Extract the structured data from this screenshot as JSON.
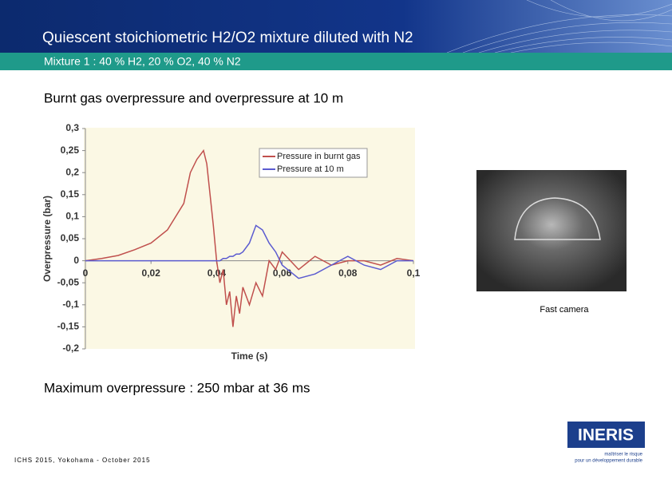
{
  "header": {
    "title": "Quiescent stoichiometric H2/O2 mixture diluted with N2",
    "subtitle": "Mixture 1 : 40 % H2, 20 % O2, 40 % N2"
  },
  "section_title": "Burnt gas overpressure and overpressure at 10 m",
  "chart_data": {
    "type": "line",
    "x_label": "Time (s)",
    "y_label": "Overpressure (bar)",
    "x": [
      0,
      0.005,
      0.01,
      0.015,
      0.02,
      0.025,
      0.03,
      0.032,
      0.034,
      0.036,
      0.037,
      0.038,
      0.039,
      0.04,
      0.041,
      0.042,
      0.043,
      0.044,
      0.045,
      0.046,
      0.047,
      0.048,
      0.05,
      0.052,
      0.054,
      0.056,
      0.058,
      0.06,
      0.065,
      0.07,
      0.075,
      0.08,
      0.085,
      0.09,
      0.095,
      0.1
    ],
    "series": [
      {
        "name": "Pressure in burnt gas",
        "color": "#c0504d",
        "values": [
          0,
          0.005,
          0.012,
          0.025,
          0.04,
          0.07,
          0.13,
          0.2,
          0.23,
          0.25,
          0.22,
          0.15,
          0.08,
          0,
          -0.05,
          -0.02,
          -0.1,
          -0.07,
          -0.15,
          -0.08,
          -0.12,
          -0.06,
          -0.1,
          -0.05,
          -0.08,
          0,
          -0.02,
          0.02,
          -0.02,
          0.01,
          -0.01,
          0,
          0,
          -0.01,
          0.005,
          0
        ]
      },
      {
        "name": "Pressure at 10 m",
        "color": "#5b5bd0",
        "values": [
          0,
          0,
          0,
          0,
          0,
          0,
          0,
          0,
          0,
          0,
          0,
          0,
          0,
          0,
          0,
          0.005,
          0.005,
          0.01,
          0.01,
          0.015,
          0.015,
          0.02,
          0.04,
          0.08,
          0.07,
          0.04,
          0.02,
          -0.01,
          -0.04,
          -0.03,
          -0.01,
          0.01,
          -0.01,
          -0.02,
          0,
          0
        ]
      }
    ],
    "xlim": [
      0,
      0.1
    ],
    "xticks": [
      0,
      {
        "value": 0.02,
        "label": "0,02"
      },
      {
        "value": 0.04,
        "label": "0,04"
      },
      {
        "value": 0.06,
        "label": "0,06"
      },
      {
        "value": 0.08,
        "label": "0,08"
      },
      {
        "value": 0.1,
        "label": "0,1"
      }
    ],
    "ylim": [
      -0.2,
      0.3
    ],
    "yticks": [
      {
        "value": 0.3,
        "label": "0,3"
      },
      {
        "value": 0.25,
        "label": "0,25"
      },
      {
        "value": 0.2,
        "label": "0,2"
      },
      {
        "value": 0.15,
        "label": "0,15"
      },
      {
        "value": 0.1,
        "label": "0,1"
      },
      {
        "value": 0.05,
        "label": "0,05"
      },
      0,
      {
        "value": -0.05,
        "label": "-0,05"
      },
      {
        "value": -0.1,
        "label": "-0,1"
      },
      {
        "value": -0.15,
        "label": "-0,15"
      },
      {
        "value": -0.2,
        "label": "-0,2"
      }
    ],
    "legend": "upper right",
    "grid": false
  },
  "image_caption": "Fast camera",
  "conclusion": "Maximum overpressure : 250 mbar at 36 ms",
  "footer": "ICHS 2015, Yokohama - October 2015",
  "logo": {
    "name": "INERIS",
    "tagline_1": "maîtriser le risque",
    "tagline_2": "pour un développement durable"
  }
}
